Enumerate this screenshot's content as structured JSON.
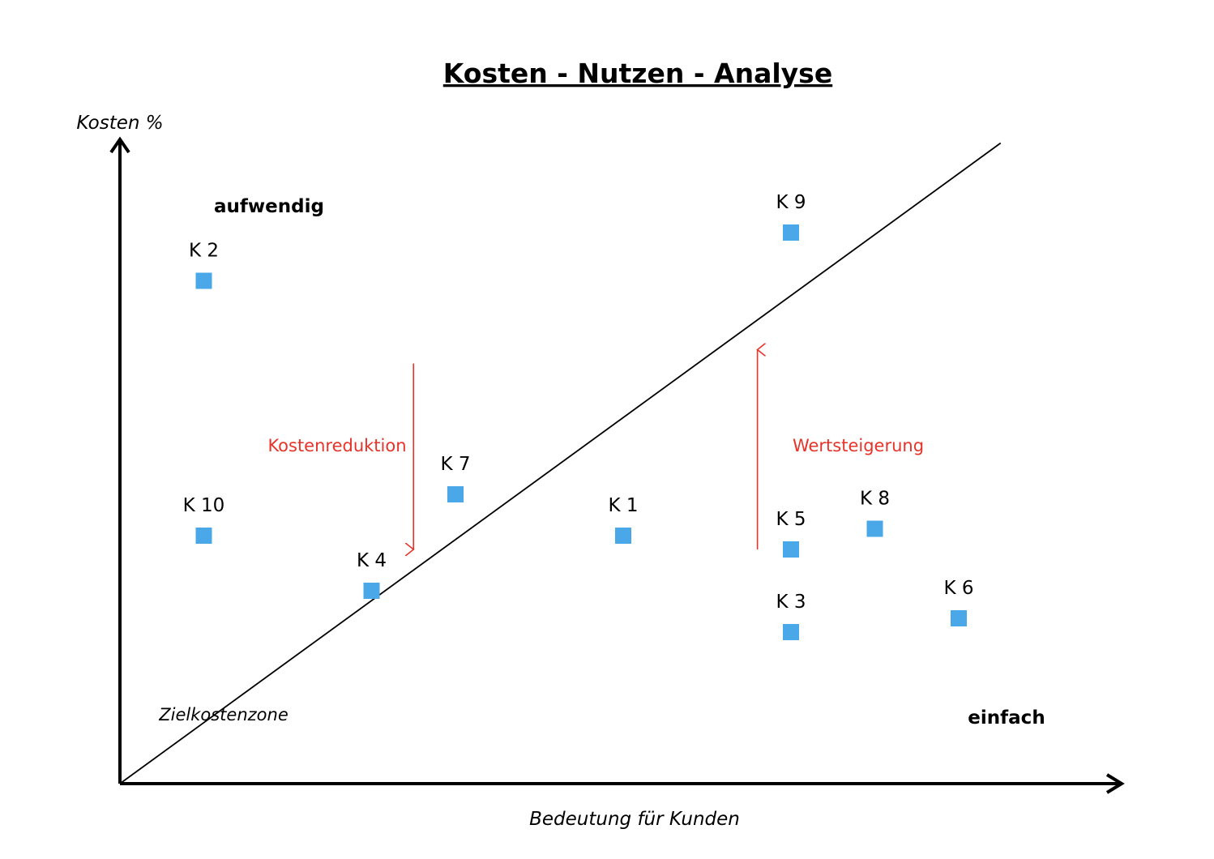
{
  "chart_data": {
    "type": "scatter",
    "title": "Kosten - Nutzen - Analyse",
    "xlabel": "Bedeutung für Kunden",
    "ylabel": "Kosten %",
    "xlim": [
      0,
      12
    ],
    "ylim": [
      0,
      10
    ],
    "grid": false,
    "points": [
      {
        "label": "K 1",
        "x": 6.0,
        "y": 3.6
      },
      {
        "label": "K 2",
        "x": 1.0,
        "y": 7.3
      },
      {
        "label": "K 3",
        "x": 8.0,
        "y": 2.2
      },
      {
        "label": "K 4",
        "x": 3.0,
        "y": 2.8
      },
      {
        "label": "K 5",
        "x": 8.0,
        "y": 3.4
      },
      {
        "label": "K 6",
        "x": 10.0,
        "y": 2.4
      },
      {
        "label": "K 7",
        "x": 4.0,
        "y": 4.2
      },
      {
        "label": "K 8",
        "x": 9.0,
        "y": 3.7
      },
      {
        "label": "K 9",
        "x": 8.0,
        "y": 8.0
      },
      {
        "label": "K 10",
        "x": 1.0,
        "y": 3.6
      }
    ],
    "diagonal": {
      "from": [
        0,
        0
      ],
      "to": [
        10.5,
        9.3
      ]
    },
    "annotations": {
      "top_left": "aufwendig",
      "bottom_right": "einfach",
      "zone": "Zielkostenzone",
      "down_arrow": {
        "label": "Kostenreduktion",
        "x": 3.5,
        "from_y": 6.1,
        "to_y": 3.4
      },
      "up_arrow": {
        "label": "Wertsteigerung",
        "x": 7.6,
        "from_y": 3.4,
        "to_y": 6.3
      }
    },
    "colors": {
      "point": "#4aa8e8",
      "annotation": "#e8332a",
      "axis": "#000000"
    }
  }
}
